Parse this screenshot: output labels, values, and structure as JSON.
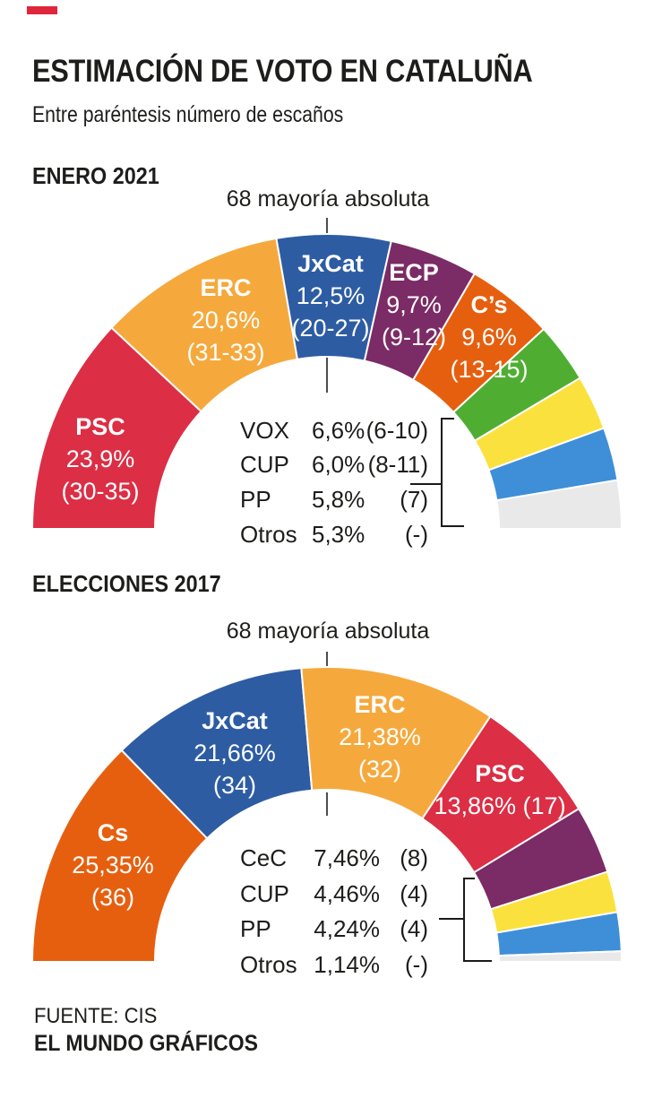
{
  "header": {
    "title": "ESTIMACIÓN DE VOTO EN CATALUÑA",
    "subtitle": "Entre paréntesis número de escaños"
  },
  "brand": {
    "accent_red": "#e0263c"
  },
  "chart_data": [
    {
      "type": "pie",
      "subtype": "half-donut-hemicycle",
      "section_title": "ENERO 2021",
      "majority_label": "68 mayoría absoluta",
      "majority_seats": 68,
      "legend_position": "center-of-hemicycle",
      "series": [
        {
          "party": "PSC",
          "value": 23.9,
          "pct_label": "23,9%",
          "seats": "(30-35)",
          "color": "#dc2e45"
        },
        {
          "party": "ERC",
          "value": 20.6,
          "pct_label": "20,6%",
          "seats": "(31-33)",
          "color": "#f5a93d"
        },
        {
          "party": "JxCat",
          "value": 12.5,
          "pct_label": "12,5%",
          "seats": "(20-27)",
          "color": "#2d5ca3"
        },
        {
          "party": "ECP",
          "value": 9.7,
          "pct_label": "9,7%",
          "seats": "(9-12)",
          "color": "#7b2b65"
        },
        {
          "party": "C’s",
          "value": 9.6,
          "pct_label": "9,6%",
          "seats": "(13-15)",
          "color": "#e65f0f"
        },
        {
          "party": "VOX",
          "value": 6.6,
          "pct_label": "6,6%",
          "seats": "(6-10)",
          "color": "#4fae32"
        },
        {
          "party": "CUP",
          "value": 6.0,
          "pct_label": "6,0%",
          "seats": "(8-11)",
          "color": "#fbe13d"
        },
        {
          "party": "PP",
          "value": 5.8,
          "pct_label": "5,8%",
          "seats": "(7)",
          "color": "#3e8fd8"
        },
        {
          "party": "Otros",
          "value": 5.3,
          "pct_label": "5,3%",
          "seats": "(-)",
          "color": "#e9e9e9"
        }
      ]
    },
    {
      "type": "pie",
      "subtype": "half-donut-hemicycle",
      "section_title": "ELECCIONES 2017",
      "majority_label": "68 mayoría absoluta",
      "majority_seats": 68,
      "legend_position": "center-of-hemicycle",
      "series": [
        {
          "party": "Cs",
          "value": 25.35,
          "pct_label": "25,35%",
          "seats": "(36)",
          "color": "#e65f0f"
        },
        {
          "party": "JxCat",
          "value": 21.66,
          "pct_label": "21,66%",
          "seats": "(34)",
          "color": "#2d5ca3"
        },
        {
          "party": "ERC",
          "value": 21.38,
          "pct_label": "21,38%",
          "seats": "(32)",
          "color": "#f5a93d"
        },
        {
          "party": "PSC",
          "value": 13.86,
          "pct_label": "13,86%",
          "seats": "(17)",
          "color": "#dc2e45"
        },
        {
          "party": "CeC",
          "value": 7.46,
          "pct_label": "7,46%",
          "seats": "(8)",
          "color": "#7b2b65"
        },
        {
          "party": "CUP",
          "value": 4.46,
          "pct_label": "4,46%",
          "seats": "(4)",
          "color": "#fbe13d"
        },
        {
          "party": "PP",
          "value": 4.24,
          "pct_label": "4,24%",
          "seats": "(4)",
          "color": "#3e8fd8"
        },
        {
          "party": "Otros",
          "value": 1.14,
          "pct_label": "1,14%",
          "seats": "(-)",
          "color": "#e9e9e9"
        }
      ]
    }
  ],
  "footer": {
    "source": "FUENTE: CIS",
    "credit": "EL MUNDO GRÁFICOS"
  }
}
